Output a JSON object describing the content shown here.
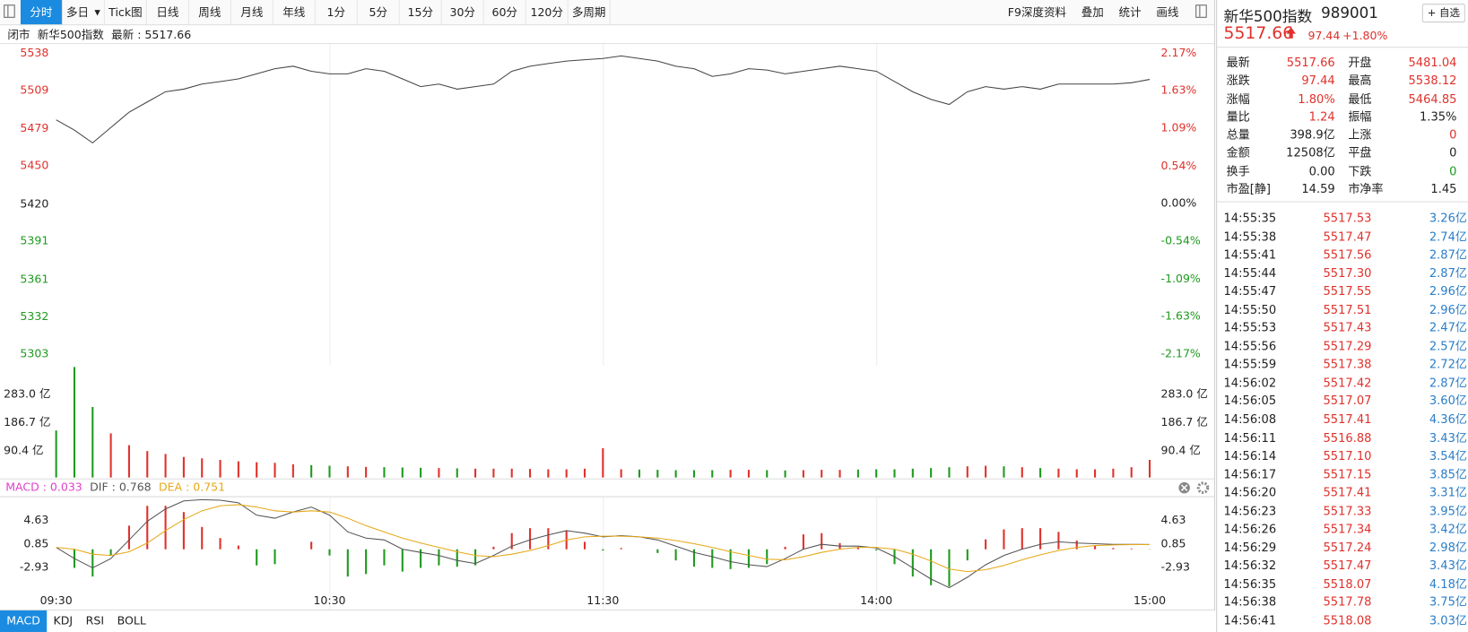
{
  "toolbar": {
    "tabs": [
      "分时",
      "多日",
      "Tick图",
      "日线",
      "周线",
      "月线",
      "年线",
      "1分",
      "5分",
      "15分",
      "30分",
      "60分",
      "120分",
      "多周期"
    ],
    "active": 0,
    "dropdown": 1,
    "tools": [
      "F9深度资料",
      "叠加",
      "统计",
      "画线"
    ]
  },
  "status": {
    "state": "闭市",
    "name": "新华500指数",
    "latest": "最新 : 5517.66"
  },
  "quote": {
    "name": "新华500指数",
    "code": "989001",
    "watch": "+ 自选",
    "price": "5517.66",
    "change": "97.44",
    "change_pct": "+1.80%"
  },
  "stats": [
    [
      {
        "label": "最新",
        "value": "5517.66",
        "color": "#e0312c"
      },
      {
        "label": "开盘",
        "value": "5481.04",
        "color": "#e0312c"
      }
    ],
    [
      {
        "label": "涨跌",
        "value": "97.44",
        "color": "#e0312c"
      },
      {
        "label": "最高",
        "value": "5538.12",
        "color": "#e0312c"
      }
    ],
    [
      {
        "label": "涨幅",
        "value": "1.80%",
        "color": "#e0312c"
      },
      {
        "label": "最低",
        "value": "5464.85",
        "color": "#e0312c"
      }
    ],
    [
      {
        "label": "量比",
        "value": "1.24",
        "color": "#e0312c"
      },
      {
        "label": "振幅",
        "value": "1.35%",
        "color": "#222222"
      }
    ],
    [
      {
        "label": "总量",
        "value": "398.9亿",
        "color": "#222222"
      },
      {
        "label": "上涨",
        "value": "0",
        "color": "#e0312c"
      }
    ],
    [
      {
        "label": "金额",
        "value": "12508亿",
        "color": "#222222"
      },
      {
        "label": "平盘",
        "value": "0",
        "color": "#222222"
      }
    ],
    [
      {
        "label": "换手",
        "value": "0.00",
        "color": "#222222"
      },
      {
        "label": "下跌",
        "value": "0",
        "color": "#1e9a1e"
      }
    ],
    [
      {
        "label": "市盈[静]",
        "value": "14.59",
        "color": "#222222"
      },
      {
        "label": "市净率",
        "value": "1.45",
        "color": "#222222"
      }
    ]
  ],
  "trades": [
    [
      "14:55:35",
      "5517.53",
      "3.26亿"
    ],
    [
      "14:55:38",
      "5517.47",
      "2.74亿"
    ],
    [
      "14:55:41",
      "5517.56",
      "2.87亿"
    ],
    [
      "14:55:44",
      "5517.30",
      "2.87亿"
    ],
    [
      "14:55:47",
      "5517.55",
      "2.96亿"
    ],
    [
      "14:55:50",
      "5517.51",
      "2.96亿"
    ],
    [
      "14:55:53",
      "5517.43",
      "2.47亿"
    ],
    [
      "14:55:56",
      "5517.29",
      "2.57亿"
    ],
    [
      "14:55:59",
      "5517.38",
      "2.72亿"
    ],
    [
      "14:56:02",
      "5517.42",
      "2.87亿"
    ],
    [
      "14:56:05",
      "5517.07",
      "3.60亿"
    ],
    [
      "14:56:08",
      "5517.41",
      "4.36亿"
    ],
    [
      "14:56:11",
      "5516.88",
      "3.43亿"
    ],
    [
      "14:56:14",
      "5517.10",
      "3.54亿"
    ],
    [
      "14:56:17",
      "5517.15",
      "3.85亿"
    ],
    [
      "14:56:20",
      "5517.41",
      "3.31亿"
    ],
    [
      "14:56:23",
      "5517.33",
      "3.95亿"
    ],
    [
      "14:56:26",
      "5517.34",
      "3.42亿"
    ],
    [
      "14:56:29",
      "5517.24",
      "2.98亿"
    ],
    [
      "14:56:32",
      "5517.47",
      "3.43亿"
    ],
    [
      "14:56:35",
      "5518.07",
      "4.18亿"
    ],
    [
      "14:56:38",
      "5517.78",
      "3.75亿"
    ],
    [
      "14:56:41",
      "5518.08",
      "3.03亿"
    ]
  ],
  "indicator_tabs": [
    "MACD",
    "KDJ",
    "RSI",
    "BOLL"
  ],
  "indicator_active": 0,
  "chart_data": [
    {
      "type": "line",
      "color": "#444444",
      "up_color": "#e0312c",
      "down_color": "#1e9a1e",
      "x": [
        0,
        4,
        8,
        12,
        16,
        20,
        24,
        28,
        32,
        36,
        40,
        44,
        48,
        52,
        56,
        60,
        64,
        68,
        72,
        76,
        80,
        84,
        88,
        92,
        96,
        100,
        104,
        108,
        112,
        116,
        120,
        124,
        128,
        132,
        136,
        140,
        144,
        148,
        152,
        156,
        160,
        164,
        168,
        172,
        176,
        180,
        184,
        188,
        192,
        196,
        200,
        204,
        208,
        212,
        216,
        220,
        224,
        228,
        232,
        236,
        240
      ],
      "xlim": [
        0,
        240
      ],
      "values": [
        5486,
        5478,
        5468,
        5480,
        5492,
        5500,
        5508,
        5510,
        5514,
        5516,
        5518,
        5522,
        5526,
        5528,
        5524,
        5522,
        5522,
        5526,
        5524,
        5518,
        5512,
        5514,
        5510,
        5512,
        5514,
        5524,
        5528,
        5530,
        5532,
        5533,
        5534,
        5536,
        5534,
        5532,
        5528,
        5526,
        5520,
        5522,
        5526,
        5525,
        5522,
        5524,
        5526,
        5528,
        5526,
        5524,
        5516,
        5508,
        5502,
        5498,
        5508,
        5512,
        5510,
        5512,
        5510,
        5514,
        5514,
        5514,
        5514,
        5515,
        5517.66
      ],
      "ylim": [
        5303,
        5538
      ],
      "yticks": [
        5538,
        5509,
        5479,
        5450,
        5420,
        5391,
        5361,
        5332,
        5303
      ],
      "y2lim": [
        -2.17,
        2.17
      ],
      "y2ticks": [
        {
          "value": 2.17,
          "label": "2.17%"
        },
        {
          "value": 1.63,
          "label": "1.63%"
        },
        {
          "value": 1.09,
          "label": "1.09%"
        },
        {
          "value": 0.54,
          "label": "0.54%"
        },
        {
          "value": 0,
          "label": "0.00%"
        },
        {
          "value": -0.54,
          "label": "-0.54%"
        },
        {
          "value": -1.09,
          "label": "-1.09%"
        },
        {
          "value": -1.63,
          "label": "-1.63%"
        },
        {
          "value": -2.17,
          "label": "-2.17%"
        }
      ]
    },
    {
      "type": "bar",
      "up_color": "#e0312c",
      "down_color": "#1e9a1e",
      "x": [
        0,
        4,
        8,
        12,
        16,
        20,
        24,
        28,
        32,
        36,
        40,
        44,
        48,
        52,
        56,
        60,
        64,
        68,
        72,
        76,
        80,
        84,
        88,
        92,
        96,
        100,
        104,
        108,
        112,
        116,
        120,
        124,
        128,
        132,
        136,
        140,
        144,
        148,
        152,
        156,
        160,
        164,
        168,
        172,
        176,
        180,
        184,
        188,
        192,
        196,
        200,
        204,
        208,
        212,
        216,
        220,
        224,
        228,
        232,
        236,
        240
      ],
      "xlim": [
        0,
        240
      ],
      "values": [
        160,
        376,
        240,
        150,
        110,
        90,
        80,
        70,
        65,
        60,
        55,
        52,
        50,
        45,
        42,
        40,
        38,
        36,
        35,
        34,
        33,
        32,
        31,
        30,
        30,
        30,
        29,
        28,
        28,
        30,
        100,
        28,
        27,
        26,
        25,
        25,
        25,
        26,
        26,
        25,
        24,
        25,
        26,
        26,
        27,
        28,
        28,
        30,
        32,
        35,
        38,
        40,
        38,
        35,
        32,
        30,
        28,
        28,
        30,
        35,
        60
      ],
      "ylim": [
        0,
        376
      ],
      "yticks": [
        {
          "value": 283.0,
          "label": "283.0 亿"
        },
        {
          "value": 186.7,
          "label": "186.7 亿"
        },
        {
          "value": 90.4,
          "label": "90.4 亿"
        }
      ]
    },
    {
      "type": "macd",
      "up_color": "#e0312c",
      "down_color": "#1e9a1e",
      "legend": [
        {
          "text": "MACD : 0.033",
          "color": "#e040c8"
        },
        {
          "text": "DIF : 0.768",
          "color": "#555555"
        },
        {
          "text": "DEA : 0.751",
          "color": "#e6a817"
        }
      ],
      "x": [
        0,
        4,
        8,
        12,
        16,
        20,
        24,
        28,
        32,
        36,
        40,
        44,
        48,
        52,
        56,
        60,
        64,
        68,
        72,
        76,
        80,
        84,
        88,
        92,
        96,
        100,
        104,
        108,
        112,
        116,
        120,
        124,
        128,
        132,
        136,
        140,
        144,
        148,
        152,
        156,
        160,
        164,
        168,
        172,
        176,
        180,
        184,
        188,
        192,
        196,
        200,
        204,
        208,
        212,
        216,
        220,
        224,
        228,
        232,
        236,
        240
      ],
      "xlim": [
        0,
        240
      ],
      "xticks": [
        {
          "value": 0,
          "label": "09:30"
        },
        {
          "value": 60,
          "label": "10:30"
        },
        {
          "value": 120,
          "label": "11:30"
        },
        {
          "value": 180,
          "label": "14:00"
        },
        {
          "value": 240,
          "label": "15:00"
        }
      ],
      "ylim": [
        -7.3,
        8.1
      ],
      "yticks": [
        4.63,
        0.85,
        -2.93
      ],
      "histogram": {
        "values": [
          0,
          -3.0,
          -4.4,
          -1.0,
          3.8,
          7.0,
          7.0,
          6.0,
          3.6,
          1.8,
          0.6,
          -2.6,
          -2.4,
          0,
          1.2,
          -1.0,
          -4.4,
          -4.0,
          -2.6,
          -3.6,
          -3.0,
          -2.6,
          -2.8,
          -2.6,
          0.4,
          2.6,
          3.4,
          3.4,
          3.0,
          1.2,
          -0.2,
          0.2,
          0,
          -0.6,
          -1.8,
          -2.8,
          -3.0,
          -3.2,
          -3.0,
          -2.4,
          0.4,
          2.4,
          2.6,
          1.0,
          0.4,
          -0.2,
          -2.4,
          -4.4,
          -5.8,
          -6.0,
          -1.8,
          1.6,
          3.2,
          3.4,
          3.4,
          2.8,
          1.4,
          0.6,
          0.2,
          0.12,
          0.033
        ]
      },
      "series": [
        {
          "color": "#555555",
          "values": [
            0.3,
            -1.5,
            -3.0,
            -1.5,
            1.5,
            4.5,
            6.5,
            7.8,
            8.0,
            7.9,
            7.5,
            5.5,
            5.0,
            6.0,
            6.8,
            5.5,
            2.8,
            1.8,
            1.5,
            0.0,
            -0.5,
            -1.0,
            -1.8,
            -2.3,
            -1.0,
            0.5,
            1.5,
            2.3,
            3.0,
            2.6,
            2.0,
            2.2,
            2.0,
            1.5,
            0.5,
            -0.5,
            -1.2,
            -2.0,
            -2.5,
            -2.8,
            -1.5,
            0.0,
            0.8,
            0.5,
            0.5,
            0.2,
            -1.2,
            -3.0,
            -4.8,
            -6.2,
            -4.5,
            -2.5,
            -1.0,
            0.0,
            0.8,
            1.2,
            1.0,
            0.9,
            0.8,
            0.8,
            0.768
          ]
        },
        {
          "color": "#e6a817",
          "values": [
            0.3,
            0.0,
            -0.8,
            -1.0,
            -0.4,
            1.0,
            3.0,
            4.8,
            6.2,
            7.0,
            7.2,
            6.8,
            6.2,
            6.0,
            6.2,
            6.0,
            5.0,
            3.8,
            2.8,
            1.8,
            1.0,
            0.3,
            -0.4,
            -1.0,
            -1.2,
            -0.8,
            -0.2,
            0.6,
            1.5,
            2.0,
            2.1,
            2.1,
            2.0,
            1.8,
            1.4,
            0.9,
            0.3,
            -0.4,
            -1.0,
            -1.6,
            -1.7,
            -1.2,
            -0.5,
            0.0,
            0.3,
            0.3,
            0.0,
            -0.8,
            -1.9,
            -3.2,
            -3.6,
            -3.3,
            -2.6,
            -1.7,
            -0.9,
            -0.2,
            0.3,
            0.6,
            0.7,
            0.74,
            0.751
          ]
        }
      ]
    }
  ]
}
